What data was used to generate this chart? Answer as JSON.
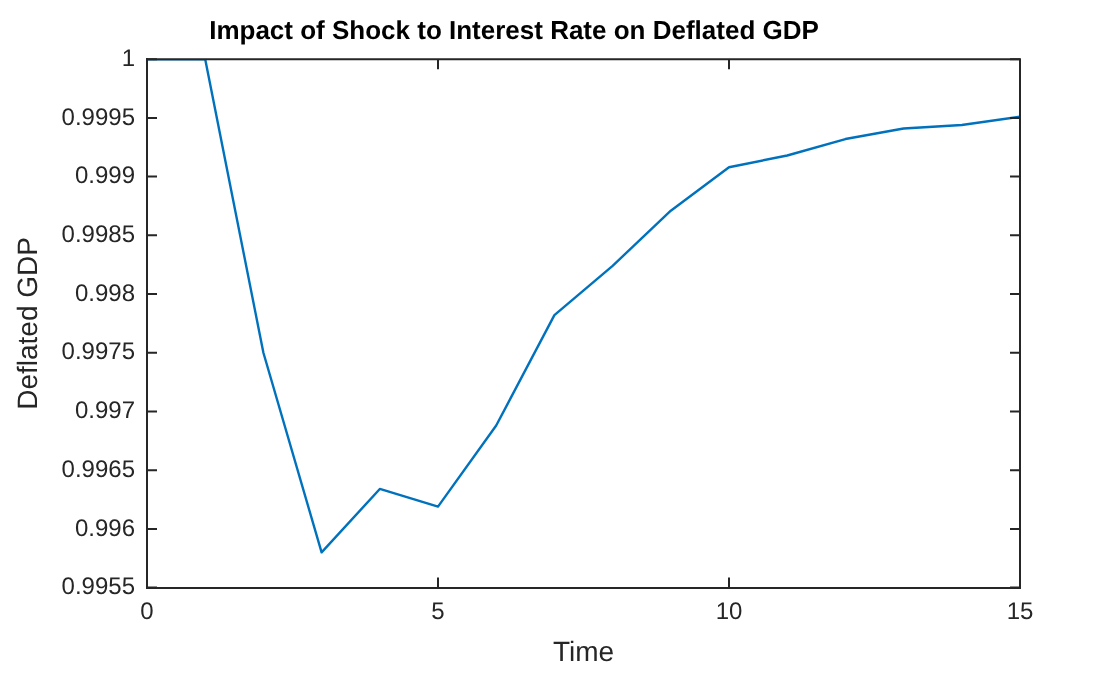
{
  "chart_data": {
    "type": "line",
    "title": "Impact of Shock to Interest Rate on Deflated GDP",
    "xlabel": "Time",
    "ylabel": "Deflated GDP",
    "x": [
      0,
      1,
      2,
      3,
      4,
      5,
      6,
      7,
      8,
      9,
      10,
      11,
      12,
      13,
      14,
      15
    ],
    "series": [
      {
        "color": "#0072bd",
        "values": [
          1,
          1,
          0.9975,
          0.9958,
          0.99634,
          0.99619,
          0.99688,
          0.99782,
          0.99824,
          0.99871,
          0.99908,
          0.99918,
          0.99932,
          0.99941,
          0.99944,
          0.99951
        ]
      }
    ],
    "xlim": [
      0,
      15
    ],
    "xticks": [
      0,
      5,
      10,
      15
    ],
    "ylim": [
      0.9955,
      1
    ],
    "yticks": [
      0.9955,
      0.996,
      0.9965,
      0.997,
      0.9975,
      0.998,
      0.9985,
      0.999,
      0.9995,
      1
    ],
    "grid": false,
    "legend": false,
    "marker": "none",
    "line_style": "solid"
  }
}
